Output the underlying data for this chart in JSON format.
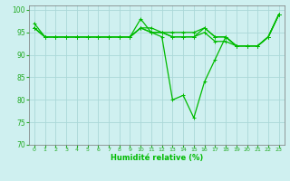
{
  "xlabel": "Humidité relative (%)",
  "ylabel": "",
  "xlim": [
    -0.5,
    23.5
  ],
  "ylim": [
    70,
    101
  ],
  "yticks": [
    70,
    75,
    80,
    85,
    90,
    95,
    100
  ],
  "xticks": [
    0,
    1,
    2,
    3,
    4,
    5,
    6,
    7,
    8,
    9,
    10,
    11,
    12,
    13,
    14,
    15,
    16,
    17,
    18,
    19,
    20,
    21,
    22,
    23
  ],
  "background_color": "#cff0f0",
  "grid_color": "#aad8d8",
  "line_color": "#00bb00",
  "lines": [
    [
      97,
      94,
      94,
      94,
      94,
      94,
      94,
      94,
      94,
      94,
      98,
      95,
      95,
      95,
      95,
      95,
      96,
      94,
      94,
      92,
      92,
      92,
      94,
      99
    ],
    [
      96,
      94,
      94,
      94,
      94,
      94,
      94,
      94,
      94,
      94,
      96,
      95,
      94,
      80,
      81,
      76,
      84,
      89,
      94,
      92,
      92,
      92,
      94,
      99
    ],
    [
      96,
      94,
      94,
      94,
      94,
      94,
      94,
      94,
      94,
      94,
      96,
      95,
      95,
      94,
      94,
      94,
      95,
      93,
      93,
      92,
      92,
      92,
      94,
      99
    ],
    [
      96,
      94,
      94,
      94,
      94,
      94,
      94,
      94,
      94,
      94,
      96,
      96,
      95,
      94,
      94,
      94,
      96,
      94,
      94,
      92,
      92,
      92,
      94,
      99
    ]
  ]
}
